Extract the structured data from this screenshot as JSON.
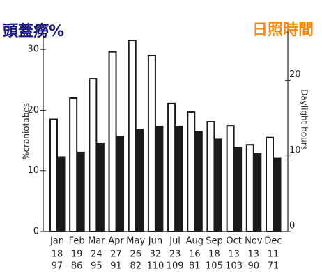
{
  "chart_data": {
    "type": "bar",
    "title": "頭蓋癆%",
    "title_color": "#1a1a7e",
    "title_right": "日照時間",
    "title_right_color": "#f28a1a",
    "y_label": "%craniotabes",
    "y2_label": "Daylight hours",
    "categories": [
      "Jan",
      "Feb",
      "Mar",
      "Apr",
      "May",
      "Jun",
      "Jul",
      "Aug",
      "Sep",
      "Oct",
      "Nov",
      "Dec"
    ],
    "series": [
      {
        "name": "%craniotabes",
        "color": "#ffffff",
        "values": [
          18.5,
          22.0,
          25.2,
          29.6,
          31.5,
          29.0,
          21.1,
          19.7,
          18.1,
          17.4,
          14.3,
          15.5
        ]
      },
      {
        "name": "Daylight hours",
        "color": "#1a1a1a",
        "axis": "y2",
        "values": [
          9.8,
          10.5,
          11.6,
          12.6,
          13.5,
          13.9,
          13.9,
          13.2,
          12.2,
          11.1,
          10.3,
          9.7
        ]
      }
    ],
    "rows": [
      [
        "18",
        "19",
        "24",
        "27",
        "26",
        "32",
        "23",
        "16",
        "18",
        "13",
        "13",
        "11"
      ],
      [
        "97",
        "86",
        "95",
        "91",
        "82",
        "110",
        "109",
        "81",
        "105",
        "103",
        "90",
        "71"
      ]
    ],
    "ylim": [
      0,
      33
    ],
    "yticks": [
      0,
      10,
      20,
      30
    ],
    "y2lim": [
      0,
      26.5
    ],
    "y2ticks": [
      0,
      10,
      20
    ]
  }
}
